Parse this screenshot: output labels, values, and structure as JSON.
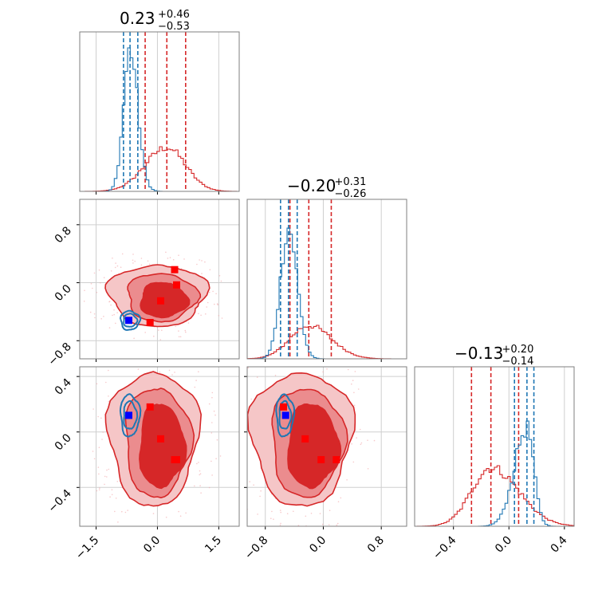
{
  "chart_data": {
    "type": "corner",
    "parameters": [
      {
        "id": "p1",
        "title_main": "0.23",
        "title_plus": "+0.46",
        "title_minus": "−0.53",
        "range": [
          -1.9,
          2.0
        ],
        "ticks": [
          {
            "v": -1.5,
            "label": "−1.5"
          },
          {
            "v": 0.0,
            "label": "0.0"
          },
          {
            "v": 1.5,
            "label": "1.5"
          }
        ]
      },
      {
        "id": "p2",
        "title_main": "−0.20",
        "title_plus": "+0.31",
        "title_minus": "−0.26",
        "range": [
          -1.05,
          1.15
        ],
        "ticks": [
          {
            "v": -0.8,
            "label": "−0.8"
          },
          {
            "v": 0.0,
            "label": "0.0"
          },
          {
            "v": 0.8,
            "label": "0.8"
          }
        ]
      },
      {
        "id": "p3",
        "title_main": "−0.13",
        "title_plus": "+0.20",
        "title_minus": "−0.14",
        "range": [
          -0.68,
          0.47
        ],
        "ticks": [
          {
            "v": -0.4,
            "label": "−0.4"
          },
          {
            "v": 0.0,
            "label": "0.0"
          },
          {
            "v": 0.4,
            "label": "0.4"
          }
        ]
      }
    ],
    "series": [
      {
        "color": "#d62728",
        "quantiles": [
          [
            -0.3,
            0.23,
            0.69
          ],
          [
            -0.46,
            -0.2,
            0.11
          ],
          [
            -0.27,
            -0.13,
            0.07
          ]
        ],
        "hist_peak_fraction": [
          0.28,
          0.21,
          0.38
        ],
        "markers": [
          [
            0.42,
            0.18,
            -0.2
          ],
          [
            0.47,
            -0.03,
            -0.2
          ],
          [
            0.08,
            -0.25,
            -0.05
          ],
          [
            -0.18,
            -0.55,
            0.18
          ]
        ],
        "contours": {
          "p1_p2": [
            [
              0.0,
              -0.17,
              2.4,
              0.0,
              0.42
            ],
            [
              0.1,
              -0.2,
              1.7,
              0.0,
              0.33
            ],
            [
              0.15,
              -0.24,
              1.15,
              0.0,
              0.24
            ]
          ],
          "p1_p3": [
            [
              -0.1,
              -0.04,
              2.2,
              0.0,
              0.48
            ],
            [
              0.0,
              -0.07,
              1.6,
              0.0,
              0.39
            ],
            [
              0.1,
              -0.1,
              1.1,
              0.0,
              0.3
            ]
          ],
          "p2_p3": [
            [
              -0.3,
              -0.04,
              1.4,
              0.0,
              0.48
            ],
            [
              -0.22,
              -0.07,
              1.0,
              0.0,
              0.39
            ],
            [
              -0.15,
              -0.1,
              0.7,
              0.0,
              0.3
            ]
          ]
        }
      },
      {
        "color": "#1f77b4",
        "quantiles": [
          [
            -0.83,
            -0.67,
            -0.48
          ],
          [
            -0.59,
            -0.48,
            -0.36
          ],
          [
            0.04,
            0.13,
            0.18
          ]
        ],
        "hist_peak_fraction": [
          0.9,
          0.82,
          0.66
        ],
        "markers": [
          [
            -0.7,
            -0.52,
            0.12
          ]
        ],
        "contours": {
          "p1_p2": [
            [
              -0.67,
              -0.52,
              0.47,
              0.0,
              0.13
            ],
            [
              -0.67,
              -0.52,
              0.33,
              0.0,
              0.09
            ]
          ],
          "p1_p3": [
            [
              -0.67,
              0.12,
              0.47,
              0.0,
              0.15
            ],
            [
              -0.67,
              0.12,
              0.32,
              0.0,
              0.1
            ]
          ],
          "p2_p3": [
            [
              -0.53,
              0.12,
              0.24,
              0.0,
              0.15
            ],
            [
              -0.53,
              0.12,
              0.16,
              0.0,
              0.1
            ]
          ]
        }
      }
    ]
  }
}
